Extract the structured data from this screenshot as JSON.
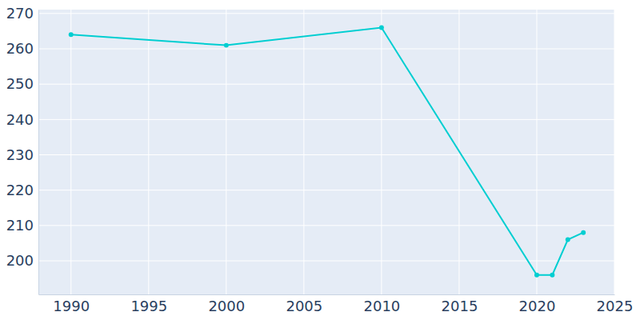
{
  "chart_data": {
    "type": "line",
    "x": [
      1990,
      2000,
      2010,
      2020,
      2021,
      2022,
      2023
    ],
    "values": [
      264,
      261,
      266,
      196,
      196,
      206,
      208
    ],
    "color": "#00ced1",
    "marker": "circle",
    "xlim": [
      1987.9,
      2025
    ],
    "ylim": [
      190.5,
      271.1
    ],
    "xticks": [
      1990,
      1995,
      2000,
      2005,
      2010,
      2015,
      2020,
      2025
    ],
    "yticks": [
      200,
      210,
      220,
      230,
      240,
      250,
      260,
      270
    ],
    "grid": true
  }
}
